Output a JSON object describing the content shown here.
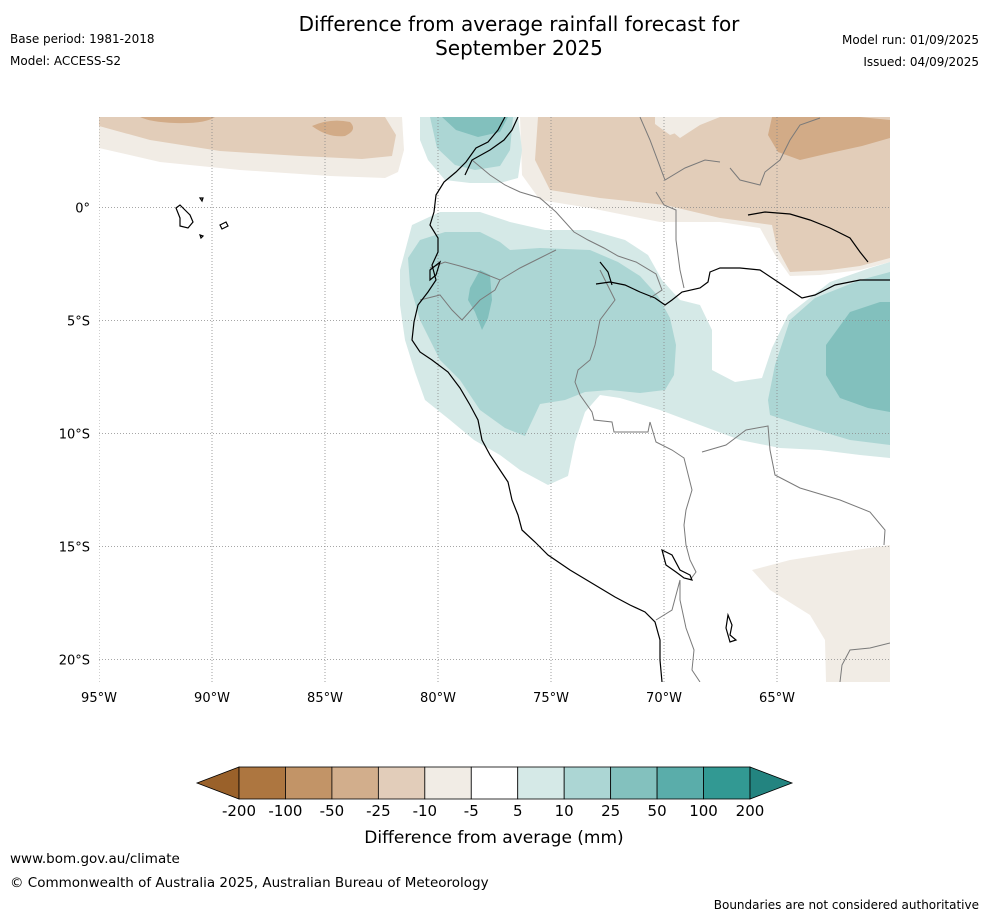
{
  "header": {
    "title_line1": "Difference from average rainfall forecast for",
    "title_line2": "September 2025",
    "base_period": "Base period: 1981-2018",
    "model": "Model: ACCESS-S2",
    "model_run": "Model run: 01/09/2025",
    "issued": "Issued: 04/09/2025"
  },
  "map": {
    "lon_range": [
      -95,
      -60
    ],
    "lat_range": [
      -21,
      4
    ],
    "lon_ticks": [
      {
        "value": -95,
        "label": "95°W"
      },
      {
        "value": -90,
        "label": "90°W"
      },
      {
        "value": -85,
        "label": "85°W"
      },
      {
        "value": -80,
        "label": "80°W"
      },
      {
        "value": -75,
        "label": "75°W"
      },
      {
        "value": -70,
        "label": "70°W"
      },
      {
        "value": -65,
        "label": "65°W"
      }
    ],
    "lat_ticks": [
      {
        "value": 0,
        "label": "0°"
      },
      {
        "value": -5,
        "label": "5°S"
      },
      {
        "value": -10,
        "label": "10°S"
      },
      {
        "value": -15,
        "label": "15°S"
      },
      {
        "value": -20,
        "label": "20°S"
      }
    ],
    "colors": {
      "dry_5_10": "#f1ece5",
      "dry_10_25": "#e2cdb9",
      "dry_25_50": "#d2ab87",
      "wet_5_10": "#d5e9e7",
      "wet_10_25": "#acd6d4",
      "wet_25_50": "#82c0bd",
      "coast": "#000000",
      "border": "#7a7a7a",
      "grid": "#888888"
    }
  },
  "colorbar": {
    "label": "Difference from average (mm)",
    "tick_labels": [
      "-200",
      "-100",
      "-50",
      "-25",
      "-10",
      "-5",
      "5",
      "10",
      "25",
      "50",
      "100",
      "200"
    ],
    "colors": [
      "#ad7640",
      "#c29467",
      "#d2ae8c",
      "#e2cdba",
      "#f1ece5",
      "#ffffff",
      "#d5e9e7",
      "#acd6d4",
      "#83c1be",
      "#5aadaa",
      "#329993"
    ],
    "under_color": "#9a612a",
    "over_color": "#238480"
  },
  "footer": {
    "url": "www.bom.gov.au/climate",
    "copyright": "© Commonwealth of Australia 2025, Australian Bureau of Meteorology",
    "disclaimer": "Boundaries are not considered authoritative"
  }
}
